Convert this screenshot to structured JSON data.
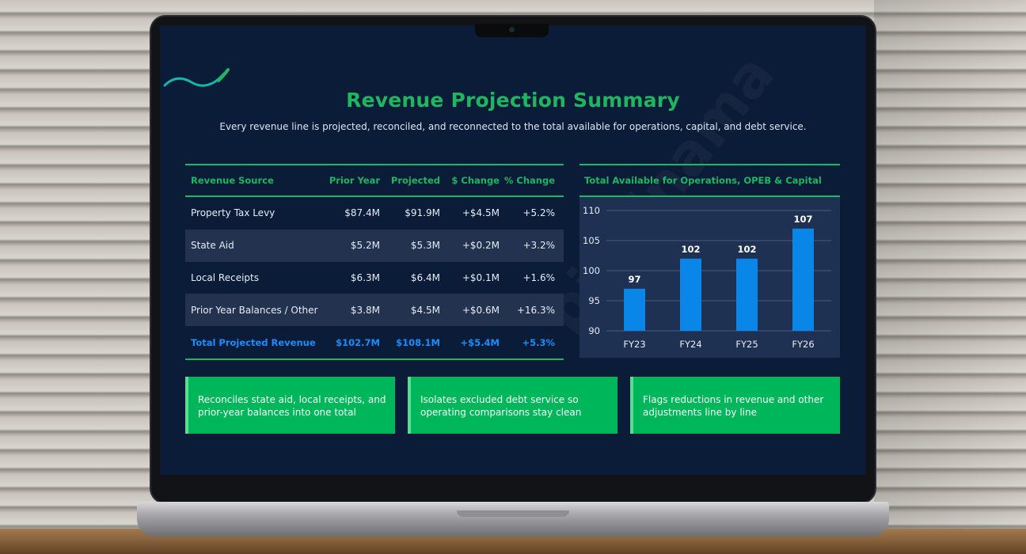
{
  "slide": {
    "title": "Revenue Projection Summary",
    "subtitle": "Every revenue line is projected, reconciled, and reconnected to the total available for operations, capital, and debt service.",
    "watermark": "pixelnama"
  },
  "table": {
    "headers": {
      "source": "Revenue Source",
      "prior": "Prior Year",
      "projected": "Projected",
      "dollar_change": "$ Change",
      "pct_change": "% Change"
    },
    "rows": [
      {
        "source": "Property Tax Levy",
        "prior": "$87.4M",
        "projected": "$91.9M",
        "dollar_change": "+$4.5M",
        "pct_change": "+5.2%"
      },
      {
        "source": "State Aid",
        "prior": "$5.2M",
        "projected": "$5.3M",
        "dollar_change": "+$0.2M",
        "pct_change": "+3.2%"
      },
      {
        "source": "Local Receipts",
        "prior": "$6.3M",
        "projected": "$6.4M",
        "dollar_change": "+$0.1M",
        "pct_change": "+1.6%"
      },
      {
        "source": "Prior Year Balances / Other",
        "prior": "$3.8M",
        "projected": "$4.5M",
        "dollar_change": "+$0.6M",
        "pct_change": "+16.3%"
      }
    ],
    "total": {
      "source": "Total Projected Revenue",
      "prior": "$102.7M",
      "projected": "$108.1M",
      "dollar_change": "+$5.4M",
      "pct_change": "+5.3%"
    }
  },
  "chart_data": {
    "type": "bar",
    "title": "Total Available for Operations, OPEB & Capital",
    "categories": [
      "FY23",
      "FY24",
      "FY25",
      "FY26"
    ],
    "values": [
      97,
      102,
      102,
      107
    ],
    "ylim": [
      90,
      110
    ],
    "yticks": [
      90,
      95,
      100,
      105,
      110
    ],
    "grid": true,
    "bar_color": "#0a86e8"
  },
  "callouts": [
    "Reconciles state aid, local receipts, and prior-year balances into one total",
    "Isolates excluded debt service so operating comparisons stay clean",
    "Flags reductions in revenue and other adjustments line by line"
  ],
  "colors": {
    "accent_green": "#1fb65f",
    "accent_blue": "#1a8dff",
    "slide_background": "#0b1c38",
    "card_green": "#00b65a"
  }
}
